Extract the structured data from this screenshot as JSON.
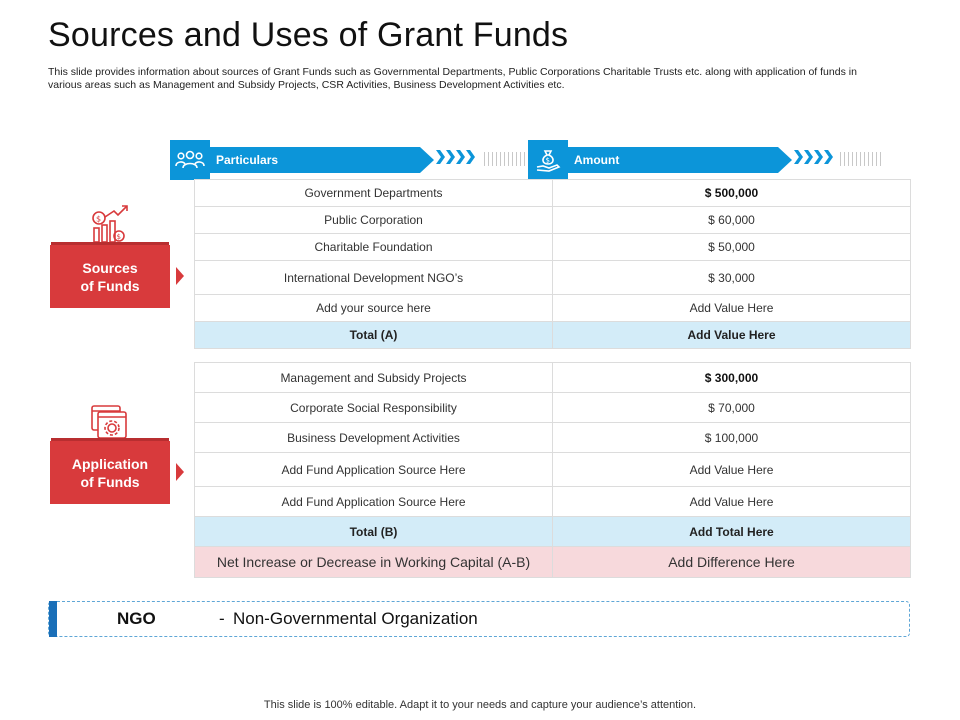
{
  "title": "Sources and Uses of Grant Funds",
  "subtitle": "This slide provides information about sources of Grant Funds such as Governmental Departments, Public Corporations Charitable Trusts etc. along with application of funds in various areas such as Management and Subsidy Projects, CSR Activities,  Business Development Activities etc.",
  "headers": {
    "particulars": "Particulars",
    "amount": "Amount"
  },
  "sources": {
    "label": "Sources\nof Funds",
    "rows": [
      {
        "name": "Government  Departments",
        "value": "$ 500,000",
        "bold": true
      },
      {
        "name": "Public Corporation",
        "value": "$ 60,000",
        "bold": false
      },
      {
        "name": "Charitable  Foundation",
        "value": "$ 50,000",
        "bold": false
      },
      {
        "name": "International  Development  NGO’s",
        "value": "$ 30,000",
        "bold": false
      },
      {
        "name": "Add your source here",
        "value": "Add Value Here",
        "bold": false
      }
    ],
    "total": {
      "name": "Total (A)",
      "value": "Add Value Here"
    }
  },
  "applications": {
    "label": "Application\nof Funds",
    "rows": [
      {
        "name": "Management  and Subsidy Projects",
        "value": "$ 300,000",
        "bold": true
      },
      {
        "name": "Corporate  Social Responsibility",
        "value": "$ 70,000",
        "bold": false
      },
      {
        "name": "Business Development  Activities",
        "value": "$ 100,000",
        "bold": false
      },
      {
        "name": "Add Fund Application Source Here",
        "value": "Add Value Here",
        "bold": false
      },
      {
        "name": "Add Fund Application Source Here",
        "value": "Add Value Here",
        "bold": false
      }
    ],
    "total": {
      "name": "Total (B)",
      "value": "Add Total Here"
    },
    "net": {
      "name": "Net Increase or Decrease in Working Capital (A-B)",
      "value": "Add Difference Here"
    }
  },
  "note": {
    "term": "NGO",
    "separator": "-",
    "definition": "Non-Governmental Organization"
  },
  "footer": "This slide is 100% editable. Adapt it to your needs and capture your audience’s attention.",
  "colors": {
    "blue": "#0c95d9",
    "red": "#d83a3c",
    "total_row": "#d3ecf8",
    "net_row": "#f7d9dc"
  },
  "icons": {
    "particulars": "people-group-icon",
    "amount": "money-bag-hand-icon",
    "sources": "money-growth-chart-icon",
    "applications": "browser-gear-icon"
  }
}
